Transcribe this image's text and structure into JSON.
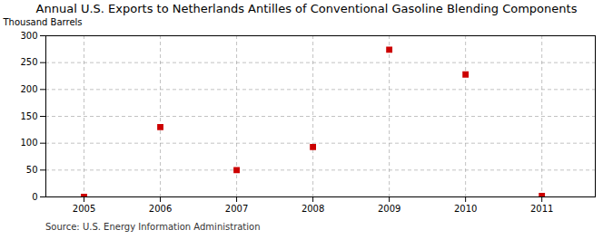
{
  "chart_data": {
    "type": "scatter",
    "title": "Annual U.S. Exports to Netherlands Antilles of Conventional Gasoline Blending Components",
    "ylabel": "Thousand Barrels",
    "source": "Source: U.S. Energy Information Administration",
    "x": [
      2005,
      2006,
      2007,
      2008,
      2009,
      2010,
      2011
    ],
    "values": [
      0,
      130,
      50,
      93,
      274,
      228,
      2
    ],
    "color": "#cc0000",
    "marker": "square",
    "xlim": [
      2004.5,
      2011.7
    ],
    "xticks": [
      2005,
      2006,
      2007,
      2008,
      2009,
      2010,
      2011
    ],
    "ylim": [
      0,
      300
    ],
    "yticks": [
      0,
      50,
      100,
      150,
      200,
      250,
      300
    ],
    "grid": true
  }
}
